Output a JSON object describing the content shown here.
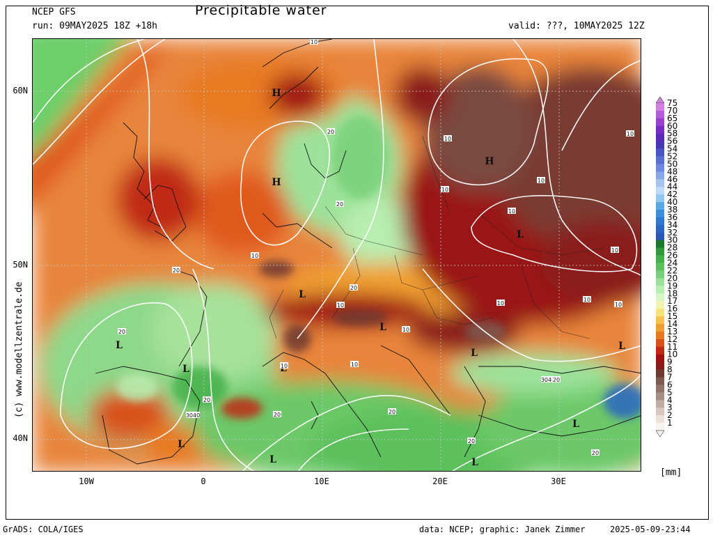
{
  "header": {
    "model": "NCEP GFS",
    "title": "Precipitable water",
    "run": "run: 09MAY2025 18Z +18h",
    "valid": "valid: ???, 10MAY2025 12Z"
  },
  "axes": {
    "y_labels": [
      "60N",
      "50N",
      "40N"
    ],
    "x_labels": [
      "10W",
      "0",
      "10E",
      "20E",
      "30E"
    ]
  },
  "credit": "(c) www.modellzentrale.de",
  "legend": {
    "unit": "[mm]",
    "levels": [
      "75",
      "70",
      "65",
      "60",
      "58",
      "56",
      "54",
      "52",
      "50",
      "48",
      "46",
      "44",
      "42",
      "40",
      "38",
      "36",
      "34",
      "32",
      "30",
      "28",
      "26",
      "24",
      "22",
      "20",
      "19",
      "18",
      "17",
      "16",
      "15",
      "14",
      "13",
      "12",
      "11",
      "10",
      "9",
      "8",
      "7",
      "6",
      "5",
      "4",
      "3",
      "2",
      "1"
    ],
    "colors": [
      "#d37fe0",
      "#b45cd9",
      "#9a3fcf",
      "#7a2dc4",
      "#5b2bb8",
      "#4838b4",
      "#4a55c8",
      "#5a6fd6",
      "#6d88de",
      "#86a6e8",
      "#a6c3f0",
      "#bcdaf8",
      "#8fc8f0",
      "#5aa8e6",
      "#3e8edc",
      "#2f78cf",
      "#2a66c2",
      "#2a58b5",
      "#1c7a2c",
      "#2e9a3a",
      "#44b04a",
      "#5cc05c",
      "#7ad07a",
      "#9ce29a",
      "#b8eeb0",
      "#d6f6c6",
      "#f0f4b0",
      "#f6e27a",
      "#f6c44e",
      "#f0a030",
      "#e87a22",
      "#d8521a",
      "#c02a14",
      "#a01212",
      "#8a1a1a",
      "#6e3a32",
      "#7e5a50",
      "#927468",
      "#a88f84",
      "#c0aca2",
      "#d8c8c0",
      "#ece0da",
      "#f8f2ee"
    ]
  },
  "map_labels": {
    "highs": [
      "H",
      "H",
      "H"
    ],
    "lows": [
      "L",
      "L",
      "L",
      "L",
      "L",
      "L",
      "L",
      "L",
      "L",
      "L",
      "L",
      "L",
      "L"
    ],
    "contours": [
      "10",
      "20",
      "10",
      "20",
      "20",
      "10",
      "10",
      "10",
      "10",
      "10",
      "10",
      "10",
      "10",
      "10",
      "10",
      "10",
      "20",
      "20",
      "20",
      "20",
      "20",
      "3040",
      "20",
      "3040",
      "20",
      "20",
      "10",
      "10"
    ]
  },
  "footer": {
    "left": "GrADS: COLA/IGES",
    "center": "data: NCEP; graphic: Janek Zimmer",
    "right": "2025-05-09-23:44"
  }
}
